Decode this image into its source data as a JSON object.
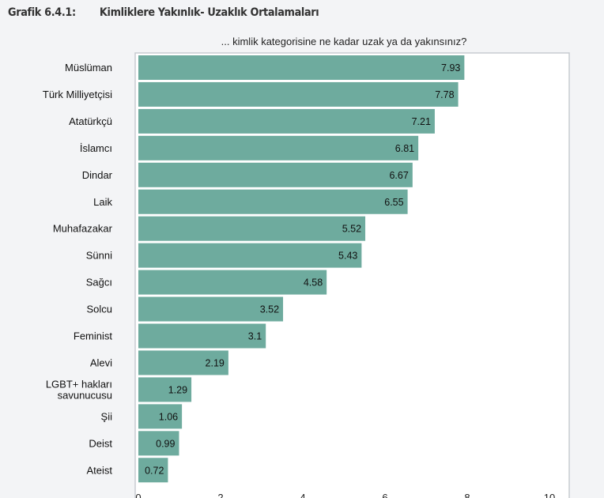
{
  "figure": {
    "number": "Grafik 6.4.1:",
    "title": "Kimliklere Yakınlık- Uzaklık Ortalamaları"
  },
  "chart_data": {
    "type": "bar",
    "orientation": "horizontal",
    "subtitle": "... kimlik kategorisine ne kadar uzak ya da yakınsınız?",
    "categories": [
      "Müslüman",
      "Türk Milliyetçisi",
      "Atatürkçü",
      "İslamcı",
      "Dindar",
      "Laik",
      "Muhafazakar",
      "Sünni",
      "Sağcı",
      "Solcu",
      "Feminist",
      "Alevi",
      "LGBT+ hakları savunucusu",
      "Şii",
      "Deist",
      "Ateist"
    ],
    "category_lines": [
      [
        "Müslüman"
      ],
      [
        "Türk Milliyetçisi"
      ],
      [
        "Atatürkçü"
      ],
      [
        "İslamcı"
      ],
      [
        "Dindar"
      ],
      [
        "Laik"
      ],
      [
        "Muhafazakar"
      ],
      [
        "Sünni"
      ],
      [
        "Sağcı"
      ],
      [
        "Solcu"
      ],
      [
        "Feminist"
      ],
      [
        "Alevi"
      ],
      [
        "LGBT+ hakları",
        "savunucusu"
      ],
      [
        "Şii"
      ],
      [
        "Deist"
      ],
      [
        "Ateist"
      ]
    ],
    "values": [
      7.93,
      7.78,
      7.21,
      6.81,
      6.67,
      6.55,
      5.52,
      5.43,
      4.58,
      3.52,
      3.1,
      2.19,
      1.29,
      1.06,
      0.99,
      0.72
    ],
    "data_labels": [
      "7.93",
      "7.78",
      "7.21",
      "6.81",
      "6.67",
      "6.55",
      "5.52",
      "5.43",
      "4.58",
      "3.52",
      "3.1",
      "2.19",
      "1.29",
      "1.06",
      "0.99",
      "0.72"
    ],
    "xlim": [
      0,
      10
    ],
    "xticks": [
      0,
      2,
      4,
      6,
      8,
      10
    ],
    "xlabel": "",
    "ylabel": "",
    "bar_color": "#6eab9e",
    "grid": false,
    "legend": "none"
  }
}
